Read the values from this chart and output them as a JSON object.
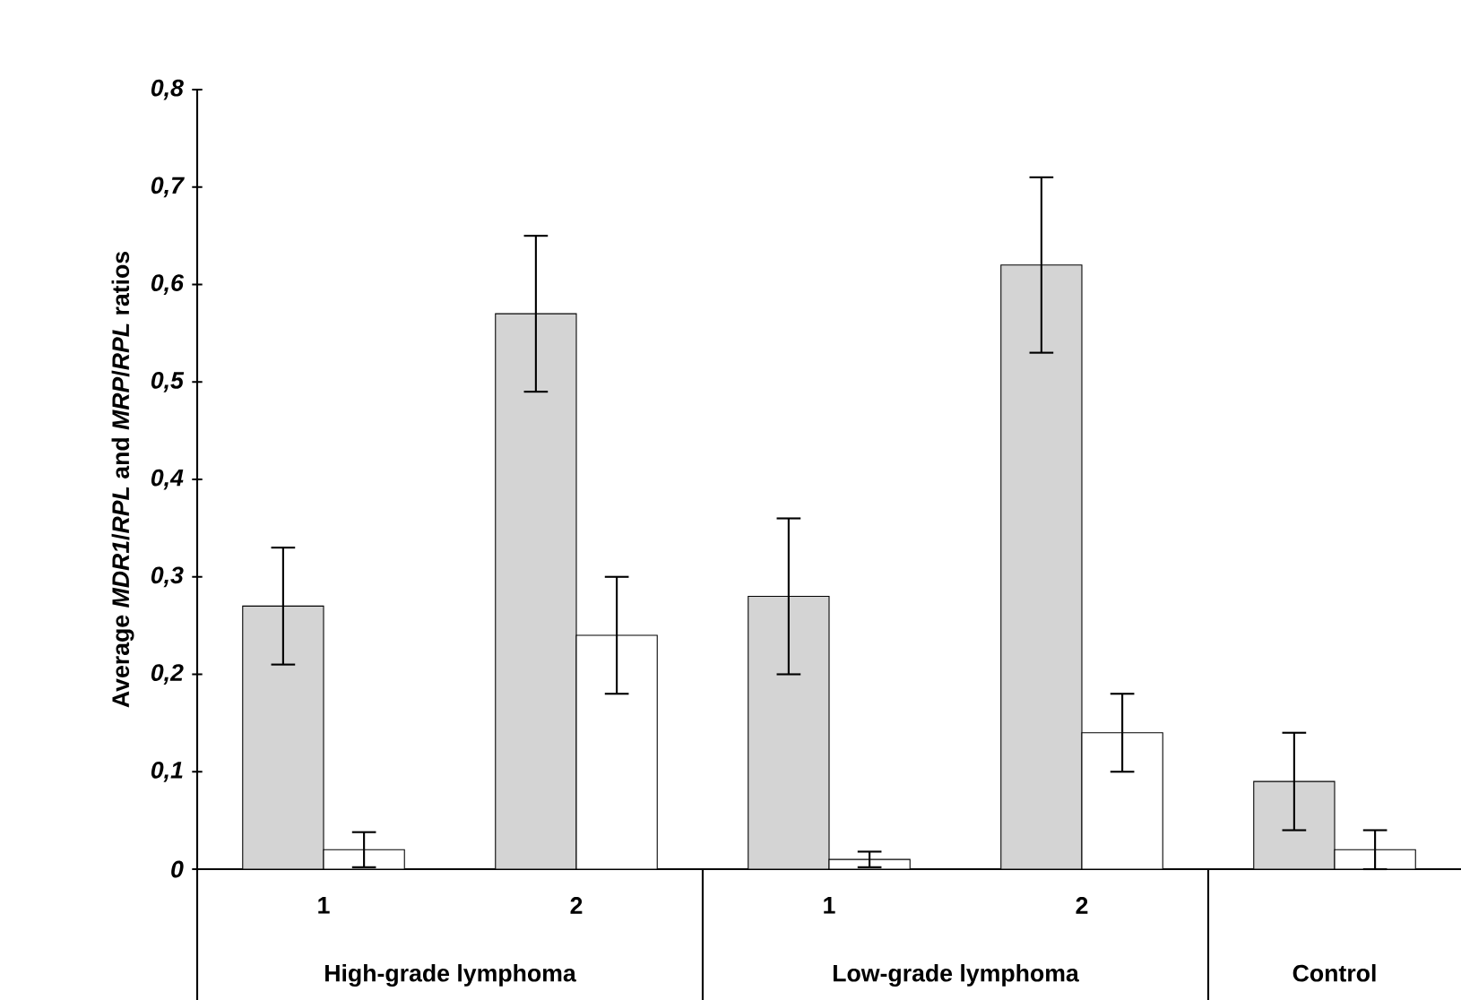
{
  "chart_data": {
    "type": "bar",
    "ylabel": "Average *MDR1*/*RPL* and *MRP*/*RPL* ratios",
    "categories": [
      "1",
      "2",
      "1",
      "2",
      null
    ],
    "series": [
      {
        "color": "#d4d4d4",
        "values": [
          0.27,
          0.57,
          0.28,
          0.62,
          0.09
        ],
        "errors": [
          0.06,
          0.08,
          0.08,
          0.09,
          0.05
        ]
      },
      {
        "color": "#ffffff",
        "values": [
          0.02,
          0.24,
          0.01,
          0.14,
          0.02
        ],
        "errors": [
          0.018,
          0.06,
          0.008,
          0.04,
          0.02
        ]
      }
    ],
    "ylim": [
      0,
      0.8
    ],
    "yticks": [
      {
        "value": 0,
        "label": "0"
      },
      {
        "value": 0.1,
        "label": "0,1"
      },
      {
        "value": 0.2,
        "label": "0,2"
      },
      {
        "value": 0.3,
        "label": "0,3"
      },
      {
        "value": 0.4,
        "label": "0,4"
      },
      {
        "value": 0.5,
        "label": "0,5"
      },
      {
        "value": 0.6,
        "label": "0,6"
      },
      {
        "value": 0.7,
        "label": "0,7"
      },
      {
        "value": 0.8,
        "label": "0,8"
      }
    ],
    "annotations": [
      "High-grade lymphoma",
      "Low-grade lymphoma",
      "Control"
    ]
  }
}
